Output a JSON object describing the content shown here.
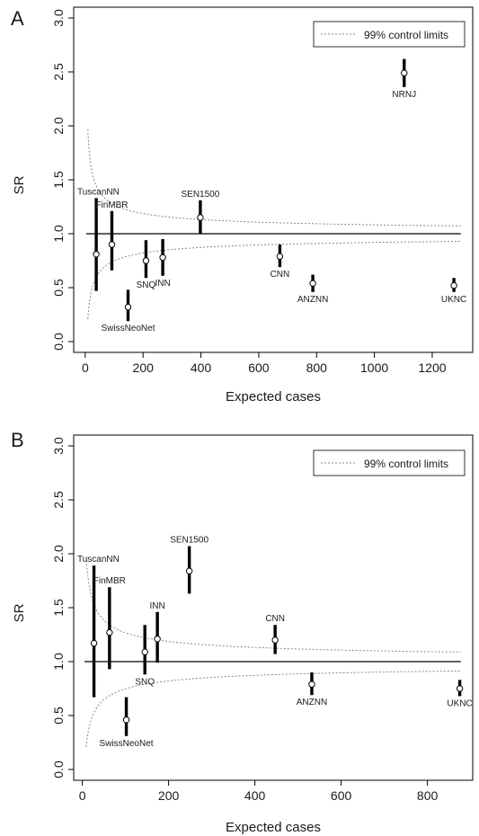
{
  "chart_data": [
    {
      "panel": "A",
      "type": "scatter",
      "xlabel": "Expected cases",
      "ylabel": "SR",
      "xlim": [
        -40,
        1340
      ],
      "ylim": [
        -0.1,
        3.1
      ],
      "x_ticks": [
        0,
        200,
        400,
        600,
        800,
        1000,
        1200
      ],
      "y_ticks": [
        0.0,
        0.5,
        1.0,
        1.5,
        2.0,
        2.5,
        3.0
      ],
      "reference_line": 1.0,
      "legend": {
        "label": "99% control limits",
        "position": "top-right"
      },
      "points": [
        {
          "name": "TuscanNN",
          "x": 38,
          "sr": 0.81,
          "lo": 0.47,
          "hi": 1.33
        },
        {
          "name": "FinMBR",
          "x": 92,
          "sr": 0.9,
          "lo": 0.66,
          "hi": 1.21
        },
        {
          "name": "SwissNeoNet",
          "x": 148,
          "sr": 0.32,
          "lo": 0.19,
          "hi": 0.48
        },
        {
          "name": "SNQ",
          "x": 210,
          "sr": 0.75,
          "lo": 0.59,
          "hi": 0.94
        },
        {
          "name": "INN",
          "x": 268,
          "sr": 0.78,
          "lo": 0.61,
          "hi": 0.95
        },
        {
          "name": "SEN1500",
          "x": 398,
          "sr": 1.15,
          "lo": 1.0,
          "hi": 1.31
        },
        {
          "name": "CNN",
          "x": 673,
          "sr": 0.79,
          "lo": 0.69,
          "hi": 0.9
        },
        {
          "name": "ANZNN",
          "x": 787,
          "sr": 0.54,
          "lo": 0.46,
          "hi": 0.62
        },
        {
          "name": "NRNJ",
          "x": 1103,
          "sr": 2.49,
          "lo": 2.36,
          "hi": 2.62
        },
        {
          "name": "UKNC",
          "x": 1275,
          "sr": 0.52,
          "lo": 0.46,
          "hi": 0.59
        }
      ]
    },
    {
      "panel": "B",
      "type": "scatter",
      "xlabel": "Expected cases",
      "ylabel": "SR",
      "xlim": [
        -20,
        905
      ],
      "ylim": [
        -0.1,
        3.1
      ],
      "x_ticks": [
        0,
        200,
        400,
        600,
        800
      ],
      "y_ticks": [
        0.0,
        0.5,
        1.0,
        1.5,
        2.0,
        2.5,
        3.0
      ],
      "reference_line": 1.0,
      "legend": {
        "label": "99% control limits",
        "position": "top-right"
      },
      "points": [
        {
          "name": "TuscanNN",
          "x": 27,
          "sr": 1.17,
          "lo": 0.67,
          "hi": 1.89
        },
        {
          "name": "FinMBR",
          "x": 63,
          "sr": 1.27,
          "lo": 0.93,
          "hi": 1.69
        },
        {
          "name": "SwissNeoNet",
          "x": 102,
          "sr": 0.46,
          "lo": 0.31,
          "hi": 0.67
        },
        {
          "name": "SNQ",
          "x": 145,
          "sr": 1.09,
          "lo": 0.88,
          "hi": 1.34
        },
        {
          "name": "INN",
          "x": 174,
          "sr": 1.21,
          "lo": 0.99,
          "hi": 1.46
        },
        {
          "name": "SEN1500",
          "x": 248,
          "sr": 1.84,
          "lo": 1.63,
          "hi": 2.07
        },
        {
          "name": "CNN",
          "x": 447,
          "sr": 1.2,
          "lo": 1.07,
          "hi": 1.34
        },
        {
          "name": "ANZNN",
          "x": 532,
          "sr": 0.79,
          "lo": 0.69,
          "hi": 0.9
        },
        {
          "name": "UKNC",
          "x": 875,
          "sr": 0.75,
          "lo": 0.68,
          "hi": 0.83
        }
      ]
    }
  ]
}
